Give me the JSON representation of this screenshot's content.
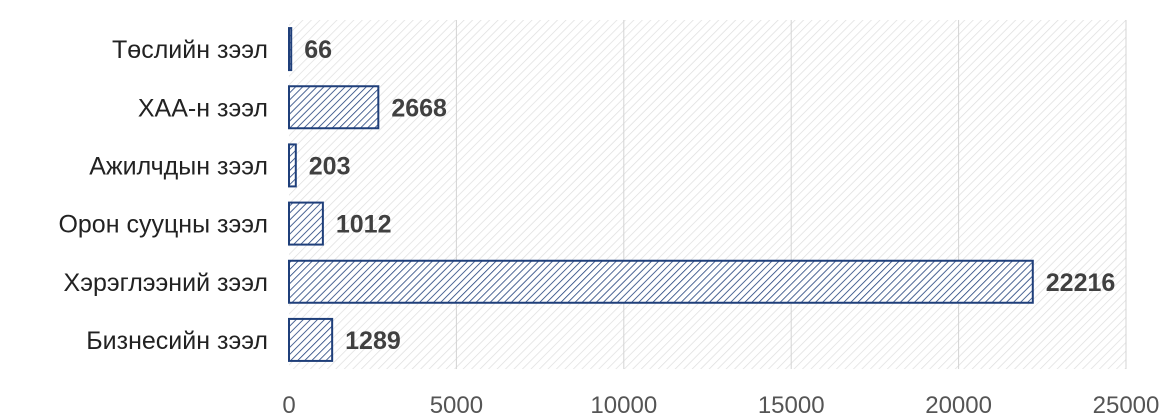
{
  "chart_data": {
    "type": "bar",
    "orientation": "horizontal",
    "categories": [
      "Төслийн зээл",
      "ХАА-н зээл",
      "Ажилчдын зээл",
      "Орон сууцны зээл",
      "Хэрэглээний зээл",
      "Бизнесийн зээл"
    ],
    "values": [
      66,
      2668,
      203,
      1012,
      22216,
      1289
    ],
    "data_labels": [
      "66",
      "2668",
      "203",
      "1012",
      "22216",
      "1289"
    ],
    "xlim": [
      0,
      25000
    ],
    "x_ticks": [
      0,
      5000,
      10000,
      15000,
      20000,
      25000
    ],
    "x_tick_labels": [
      "0",
      "5000",
      "10000",
      "15000",
      "20000",
      "25000"
    ],
    "title": "",
    "xlabel": "",
    "ylabel": "",
    "grid": true,
    "legend": "none",
    "bar_color": "#1f3f7a",
    "bar_fill": "diagonal-hatch",
    "plot_background": "diagonal-hatch-light"
  }
}
